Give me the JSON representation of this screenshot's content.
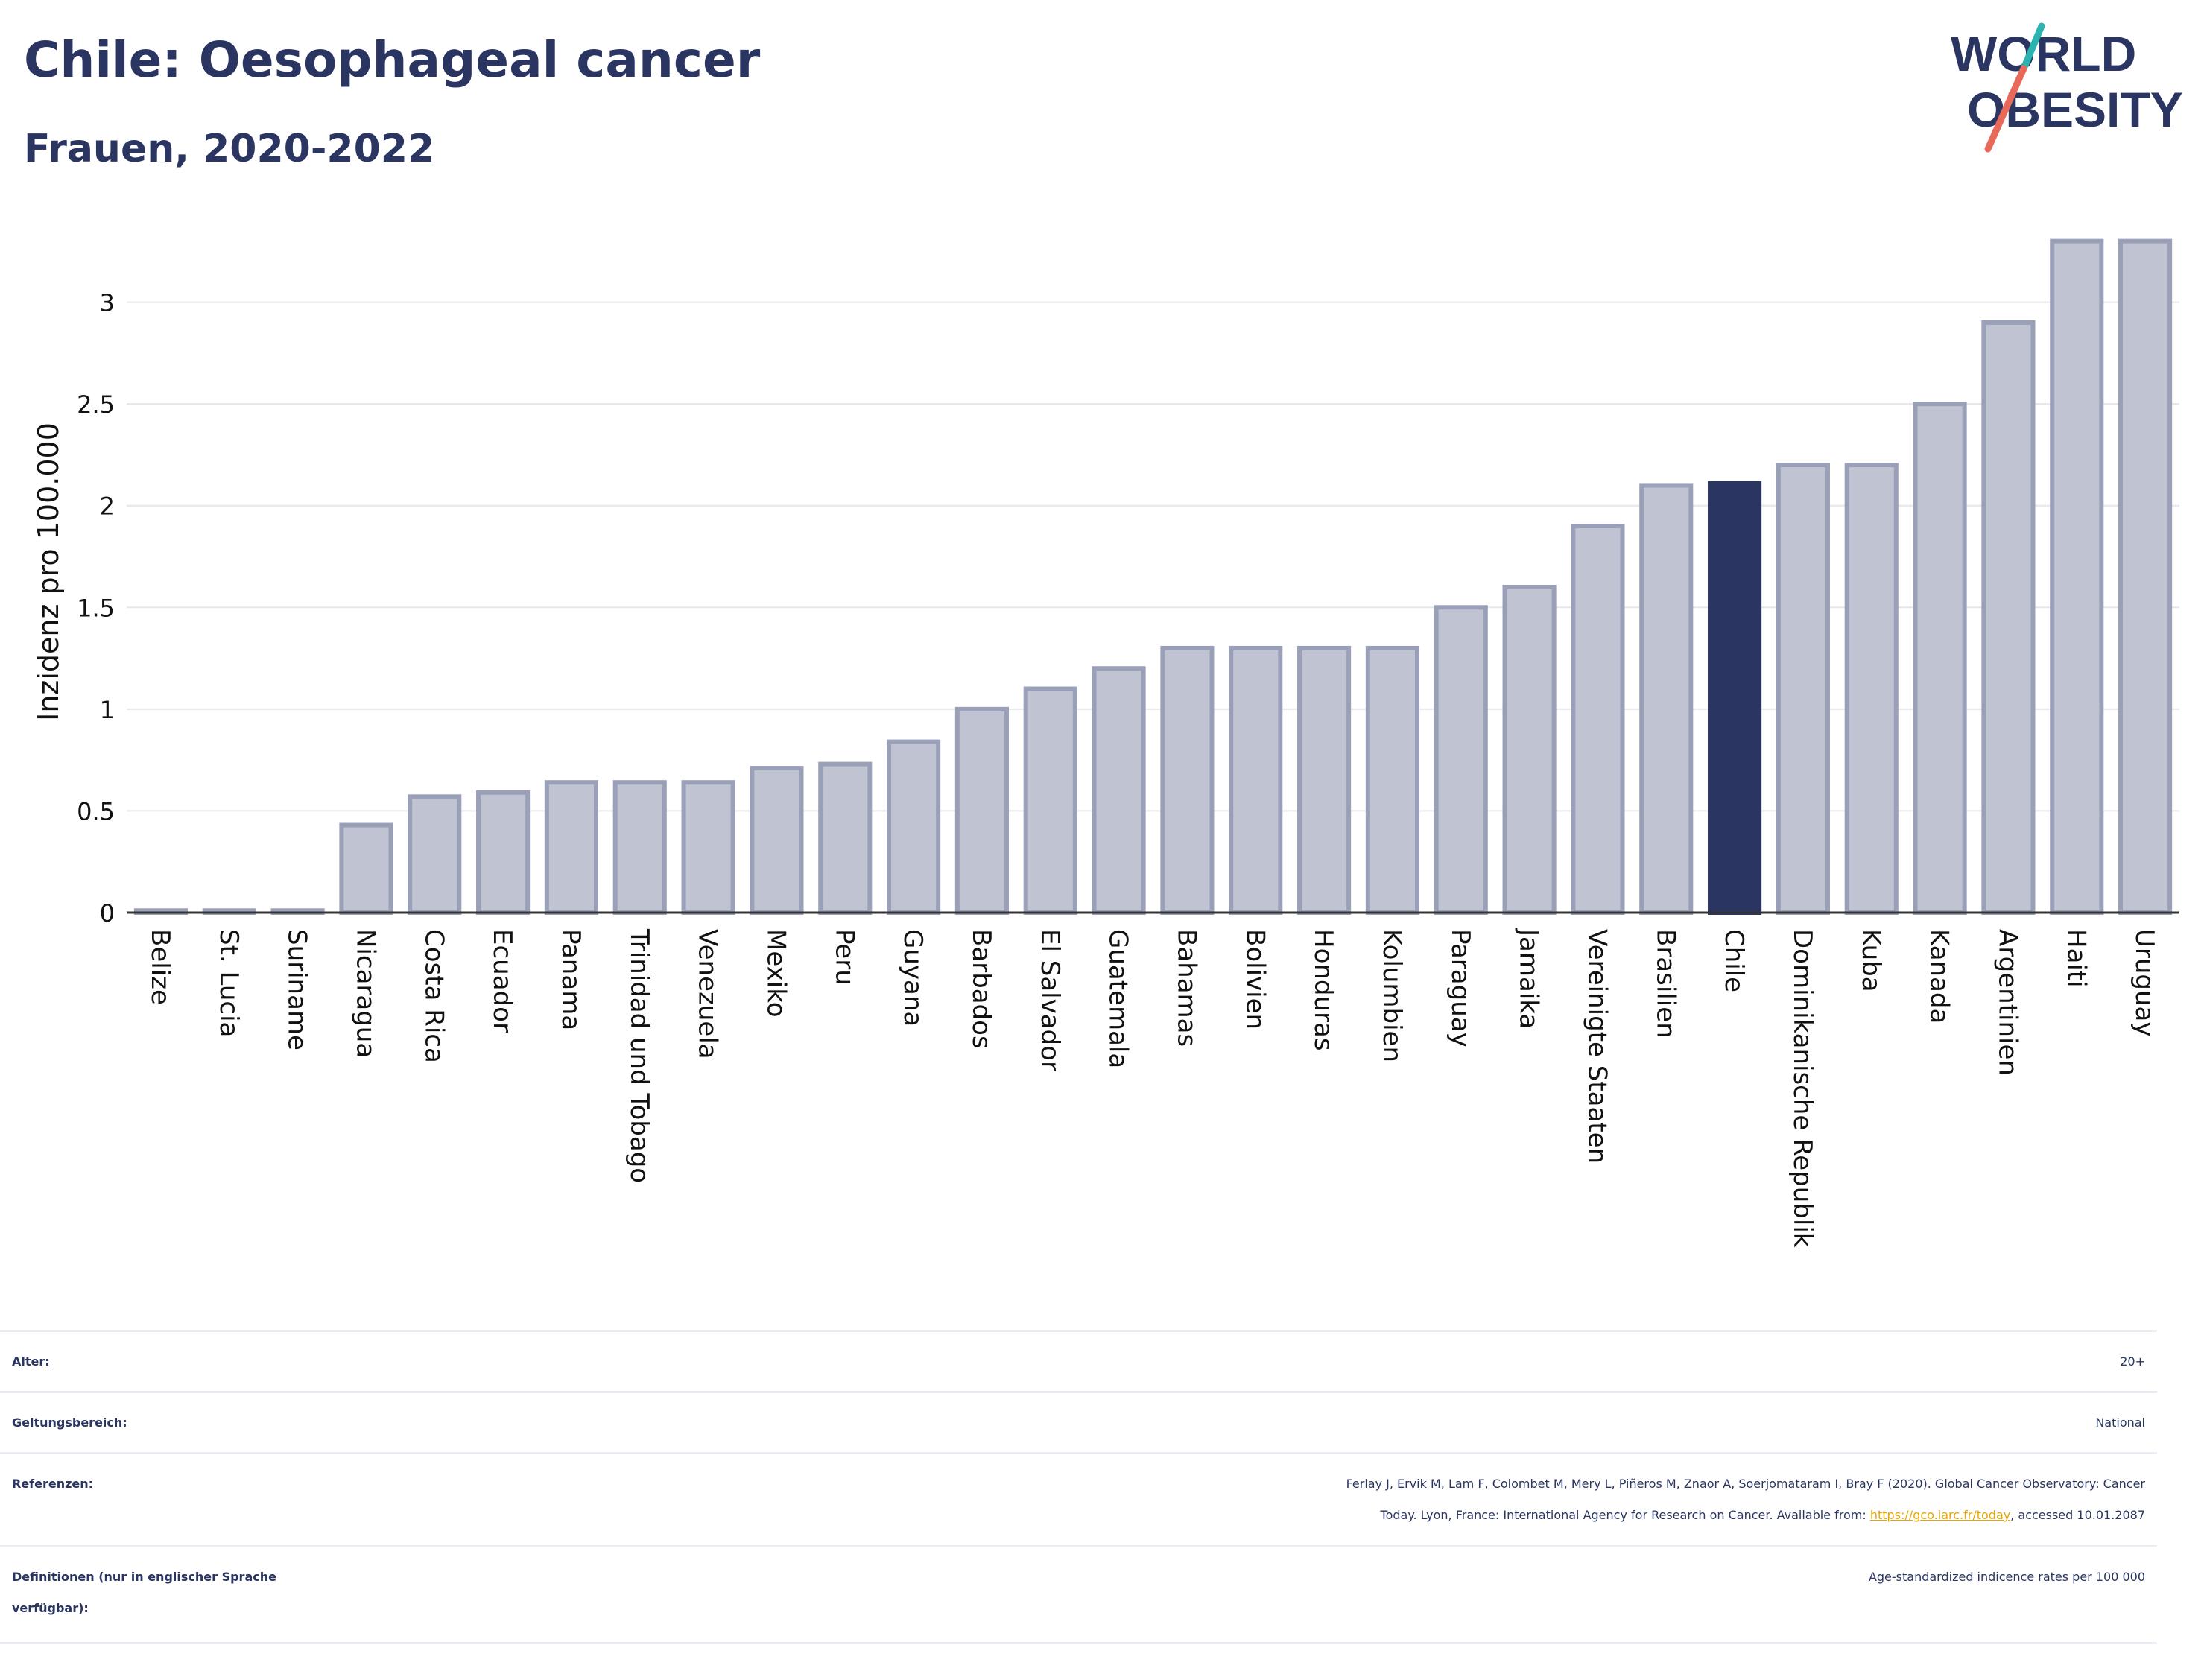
{
  "header": {
    "title": "Chile: Oesophageal cancer",
    "subtitle": "Frauen, 2020-2022"
  },
  "logo": {
    "line1": "WORLD",
    "line2": "OBESITY",
    "accent_teal": "#2ab3b1",
    "accent_red": "#e8695a"
  },
  "colors": {
    "bar_default": "#c0c4d2",
    "bar_border": "#9aa0b8",
    "bar_highlight": "#2a3561",
    "grid": "#e6e6ec",
    "axis_text": "#111111"
  },
  "chart_data": {
    "type": "bar",
    "title": "",
    "ylabel": "Inzidenz pro 100.000",
    "xlabel": "",
    "ylim": [
      0,
      3.35
    ],
    "yticks": [
      0,
      0.5,
      1,
      1.5,
      2,
      2.5,
      3
    ],
    "ytick_labels": [
      "0",
      "0.5",
      "1",
      "1.5",
      "2",
      "2.5",
      "3"
    ],
    "highlight": "Chile",
    "categories": [
      "Belize",
      "St. Lucia",
      "Suriname",
      "Nicaragua",
      "Costa Rica",
      "Ecuador",
      "Panama",
      "Trinidad und Tobago",
      "Venezuela",
      "Mexiko",
      "Peru",
      "Guyana",
      "Barbados",
      "El Salvador",
      "Guatemala",
      "Bahamas",
      "Bolivien",
      "Honduras",
      "Kolumbien",
      "Paraguay",
      "Jamaika",
      "Vereinigte Staaten",
      "Brasilien",
      "Chile",
      "Dominikanische Republik",
      "Kuba",
      "Kanada",
      "Argentinien",
      "Haiti",
      "Uruguay"
    ],
    "values": [
      0.01,
      0.01,
      0.01,
      0.43,
      0.57,
      0.59,
      0.64,
      0.64,
      0.64,
      0.71,
      0.73,
      0.84,
      1.0,
      1.1,
      1.2,
      1.3,
      1.3,
      1.3,
      1.3,
      1.5,
      1.6,
      1.9,
      2.1,
      2.11,
      2.2,
      2.2,
      2.5,
      2.9,
      3.3,
      3.3
    ],
    "grid": true,
    "legend": "none"
  },
  "meta": {
    "rows": [
      {
        "key": "Alter:",
        "value": "20+"
      },
      {
        "key": "Geltungsbereich:",
        "value": "National"
      },
      {
        "key": "Referenzen:",
        "value_line1": "Ferlay J, Ervik M, Lam F, Colombet M, Mery L, Piñeros M, Znaor A, Soerjomataram I, Bray F (2020). Global Cancer Observatory: Cancer",
        "value_line2_pre": "Today. Lyon, France: International Agency for Research on Cancer. Available from: ",
        "value_link": "https://gco.iarc.fr/today",
        "value_line2_post": ", accessed 10.01.2087"
      },
      {
        "key_line1": "Definitionen (nur in englischer Sprache",
        "key_line2": "verfügbar):",
        "value": "Age-standardized indicence rates per 100 000"
      }
    ]
  }
}
